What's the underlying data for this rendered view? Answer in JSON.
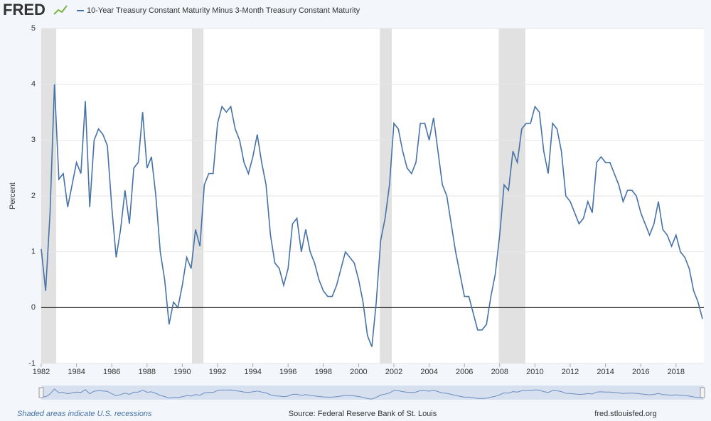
{
  "logo": "FRED",
  "footer": {
    "note": "Shaded areas indicate U.S. recessions",
    "source": "Source: Federal Reserve Bank of St. Louis",
    "site": "fred.stlouisfed.org"
  },
  "chart_data": {
    "type": "line",
    "y_label": "Percent",
    "xlim": [
      1982,
      2019.58
    ],
    "ylim": [
      -1,
      5
    ],
    "xticks": [
      1982,
      1984,
      1986,
      1988,
      1990,
      1992,
      1994,
      1996,
      1998,
      2000,
      2002,
      2004,
      2006,
      2008,
      2010,
      2012,
      2014,
      2016,
      2018
    ],
    "yticks": [
      -1,
      0,
      1,
      2,
      3,
      4,
      5
    ],
    "grid": true,
    "recessions": [
      [
        1982.0,
        1982.85
      ],
      [
        1990.55,
        1991.2
      ],
      [
        2001.2,
        2001.88
      ],
      [
        2007.95,
        2009.45
      ]
    ],
    "recession_color": "#e1e1e1",
    "x": [
      1982,
      1982.25,
      1982.5,
      1982.75,
      1983,
      1983.25,
      1983.5,
      1983.75,
      1984,
      1984.25,
      1984.5,
      1984.75,
      1985,
      1985.25,
      1985.5,
      1985.75,
      1986,
      1986.25,
      1986.5,
      1986.75,
      1987,
      1987.25,
      1987.5,
      1987.75,
      1988,
      1988.25,
      1988.5,
      1988.75,
      1989,
      1989.25,
      1989.5,
      1989.75,
      1990,
      1990.25,
      1990.5,
      1990.75,
      1991,
      1991.25,
      1991.5,
      1991.75,
      1992,
      1992.25,
      1992.5,
      1992.75,
      1993,
      1993.25,
      1993.5,
      1993.75,
      1994,
      1994.25,
      1994.5,
      1994.75,
      1995,
      1995.25,
      1995.5,
      1995.75,
      1996,
      1996.25,
      1996.5,
      1996.75,
      1997,
      1997.25,
      1997.5,
      1997.75,
      1998,
      1998.25,
      1998.5,
      1998.75,
      1999,
      1999.25,
      1999.5,
      1999.75,
      2000,
      2000.25,
      2000.5,
      2000.75,
      2001,
      2001.25,
      2001.5,
      2001.75,
      2002,
      2002.25,
      2002.5,
      2002.75,
      2003,
      2003.25,
      2003.5,
      2003.75,
      2004,
      2004.25,
      2004.5,
      2004.75,
      2005,
      2005.25,
      2005.5,
      2005.75,
      2006,
      2006.25,
      2006.5,
      2006.75,
      2007,
      2007.25,
      2007.5,
      2007.75,
      2008,
      2008.25,
      2008.5,
      2008.75,
      2009,
      2009.25,
      2009.5,
      2009.75,
      2010,
      2010.25,
      2010.5,
      2010.75,
      2011,
      2011.25,
      2011.5,
      2011.75,
      2012,
      2012.25,
      2012.5,
      2012.75,
      2013,
      2013.25,
      2013.5,
      2013.75,
      2014,
      2014.25,
      2014.5,
      2014.75,
      2015,
      2015.25,
      2015.5,
      2015.75,
      2016,
      2016.25,
      2016.5,
      2016.75,
      2017,
      2017.25,
      2017.5,
      2017.75,
      2018,
      2018.25,
      2018.5,
      2018.75,
      2019,
      2019.25,
      2019.5
    ],
    "series": [
      {
        "name": "10-Year Treasury Constant Maturity Minus 3-Month Treasury Constant Maturity",
        "color": "#4572a7",
        "values": [
          1.05,
          0.3,
          1.7,
          4.0,
          2.3,
          2.4,
          1.8,
          2.2,
          2.6,
          2.4,
          3.7,
          1.8,
          3.0,
          3.2,
          3.1,
          2.9,
          1.8,
          0.9,
          1.4,
          2.1,
          1.5,
          2.5,
          2.6,
          3.5,
          2.5,
          2.7,
          2.0,
          1.0,
          0.5,
          -0.3,
          0.1,
          0.0,
          0.4,
          0.9,
          0.7,
          1.4,
          1.1,
          2.2,
          2.4,
          2.4,
          3.3,
          3.6,
          3.5,
          3.6,
          3.2,
          3.0,
          2.6,
          2.4,
          2.7,
          3.1,
          2.6,
          2.2,
          1.3,
          0.8,
          0.7,
          0.4,
          0.7,
          1.5,
          1.6,
          1.0,
          1.4,
          1.0,
          0.8,
          0.5,
          0.3,
          0.2,
          0.2,
          0.4,
          0.7,
          1.0,
          0.9,
          0.8,
          0.5,
          0.1,
          -0.5,
          -0.7,
          0.1,
          1.2,
          1.6,
          2.2,
          3.3,
          3.2,
          2.8,
          2.5,
          2.4,
          2.6,
          3.3,
          3.3,
          3.0,
          3.4,
          2.8,
          2.2,
          2.0,
          1.5,
          1.0,
          0.6,
          0.2,
          0.2,
          -0.1,
          -0.4,
          -0.4,
          -0.3,
          0.2,
          0.6,
          1.3,
          2.2,
          2.1,
          2.8,
          2.6,
          3.2,
          3.3,
          3.3,
          3.6,
          3.5,
          2.8,
          2.4,
          3.3,
          3.2,
          2.8,
          2.0,
          1.9,
          1.7,
          1.5,
          1.6,
          1.9,
          1.7,
          2.6,
          2.7,
          2.6,
          2.6,
          2.4,
          2.2,
          1.9,
          2.1,
          2.1,
          2.0,
          1.7,
          1.5,
          1.3,
          1.5,
          1.9,
          1.4,
          1.3,
          1.1,
          1.3,
          1.0,
          0.9,
          0.7,
          0.3,
          0.1,
          -0.2
        ]
      }
    ]
  }
}
